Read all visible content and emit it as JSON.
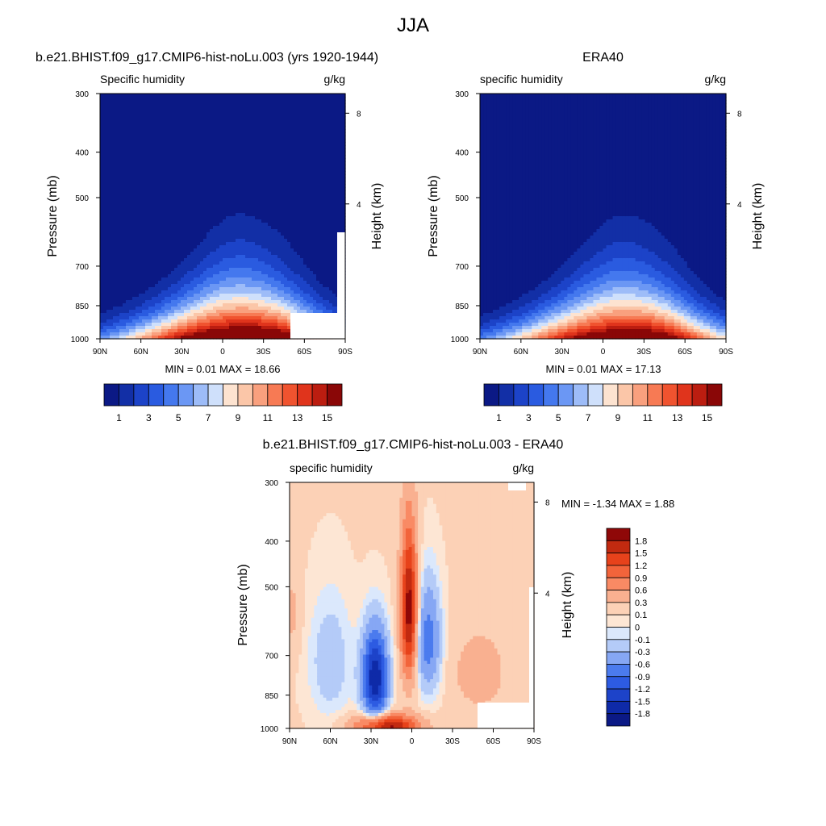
{
  "page_title": "JJA",
  "colors": {
    "abs_levels": [
      "#0b1985",
      "#122fa6",
      "#1c43c8",
      "#2a5be0",
      "#4478ee",
      "#6b97f4",
      "#9dbcf8",
      "#cfe0fb",
      "#fde3d0",
      "#fbc6a8",
      "#f9a07e",
      "#f77a54",
      "#f0532f",
      "#e0341c",
      "#bb1d10",
      "#8a0707"
    ],
    "diff_levels": [
      "#0b1985",
      "#0e2aa8",
      "#1d43c9",
      "#2d5be2",
      "#4b7bee",
      "#86a7f4",
      "#b4cbf8",
      "#dbe8fc",
      "#fde6d4",
      "#fcd1b6",
      "#f9b090",
      "#f98a64",
      "#f2643b",
      "#e7421b",
      "#c22a10",
      "#8f0808"
    ]
  },
  "chart_data": [
    {
      "id": "model",
      "type": "heatmap",
      "title": "b.e21.BHIST.f09_g17.CMIP6-hist-noLu.003 (yrs 1920-1944)",
      "left_label": "Specific humidity",
      "right_label": "g/kg",
      "ylabel": "Pressure (mb)",
      "y2label": "Height (km)",
      "x_ticks": [
        "90N",
        "60N",
        "30N",
        "0",
        "30S",
        "60S",
        "90S"
      ],
      "y_ticks": [
        "300",
        "400",
        "500",
        "700",
        "850",
        "1000"
      ],
      "y2_ticks": [
        "8",
        "4"
      ],
      "ylim": [
        1000,
        300
      ],
      "stats": "MIN =   0.01  MAX =  18.66",
      "colorbar_labels": [
        "1",
        "3",
        "5",
        "7",
        "9",
        "11",
        "13",
        "15"
      ],
      "peak": {
        "lat": -10,
        "value": 18.66
      }
    },
    {
      "id": "obs",
      "type": "heatmap",
      "title": "ERA40",
      "left_label": "specific humidity",
      "right_label": "g/kg",
      "ylabel": "Pressure (mb)",
      "y2label": "Height (km)",
      "x_ticks": [
        "90N",
        "60N",
        "30N",
        "0",
        "30S",
        "60S",
        "90S"
      ],
      "y_ticks": [
        "300",
        "400",
        "500",
        "700",
        "850",
        "1000"
      ],
      "y2_ticks": [
        "8",
        "4"
      ],
      "ylim": [
        1000,
        300
      ],
      "stats": "MIN =   0.01  MAX =  17.13",
      "colorbar_labels": [
        "1",
        "3",
        "5",
        "7",
        "9",
        "11",
        "13",
        "15"
      ],
      "peak": {
        "lat": -10,
        "value": 17.13
      }
    },
    {
      "id": "diff",
      "type": "heatmap",
      "title": "b.e21.BHIST.f09_g17.CMIP6-hist-noLu.003 - ERA40",
      "left_label": "specific humidity",
      "right_label": "g/kg",
      "ylabel": "Pressure (mb)",
      "y2label": "Height (km)",
      "x_ticks": [
        "90N",
        "60N",
        "30N",
        "0",
        "30S",
        "60S",
        "90S"
      ],
      "y_ticks": [
        "300",
        "400",
        "500",
        "700",
        "850",
        "1000"
      ],
      "y2_ticks": [
        "8",
        "4"
      ],
      "ylim": [
        1000,
        300
      ],
      "stats": "MIN =  -1.34  MAX =   1.88",
      "colorbar_labels": [
        "1.8",
        "1.5",
        "1.2",
        "0.9",
        "0.6",
        "0.3",
        "0.1",
        "0",
        "-0.1",
        "-0.3",
        "-0.6",
        "-0.9",
        "-1.2",
        "-1.5",
        "-1.8"
      ]
    }
  ]
}
